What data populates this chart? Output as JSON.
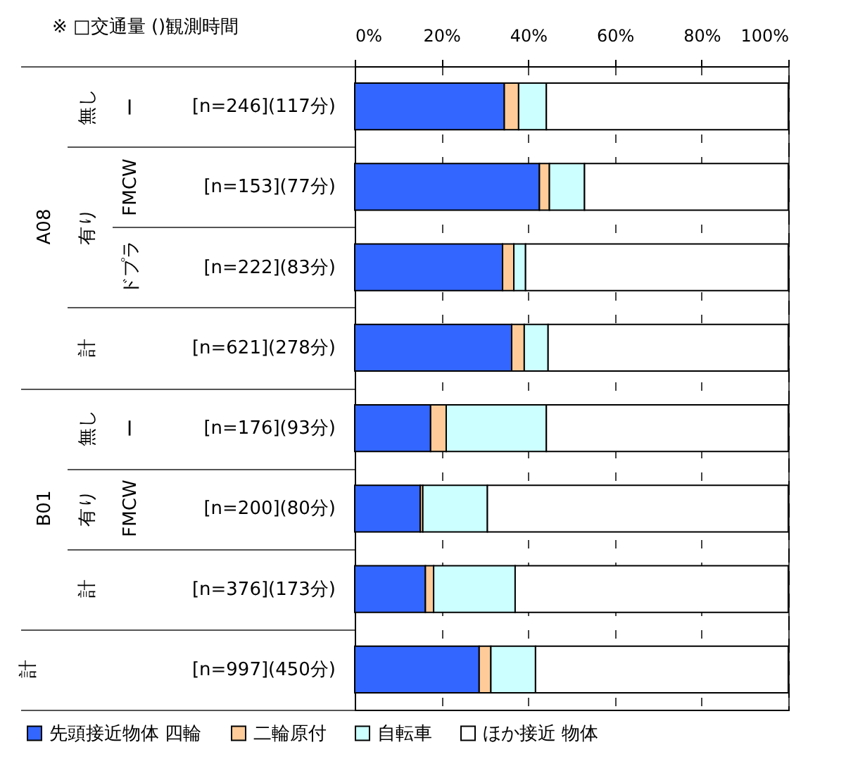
{
  "chart_data": {
    "type": "bar",
    "orientation": "horizontal",
    "stacked": true,
    "title": "※ □交通量 ()観測時間",
    "categories": [
      "[n=246](117分)",
      "[n=153](77分)",
      "[n=222](83分)",
      "[n=621](278分)",
      "[n=176](93分)",
      "[n=200](80分)",
      "[n=376](173分)",
      "[n=997](450分)"
    ],
    "series": [
      {
        "name": "先頭接近物体 四輪",
        "color": "#3366ff",
        "values": [
          34.5,
          42.6,
          34.1,
          36.2,
          17.5,
          15.1,
          16.3,
          28.7
        ]
      },
      {
        "name": "二輪原付",
        "color": "#ffcc99",
        "values": [
          3.3,
          2.3,
          2.6,
          2.9,
          3.6,
          0.6,
          1.9,
          2.7
        ]
      },
      {
        "name": "自転車",
        "color": "#ccffff",
        "values": [
          6.4,
          8.1,
          2.7,
          5.5,
          23.1,
          14.9,
          18.8,
          10.3
        ]
      },
      {
        "name": "ほか接近 物体",
        "color": "#ffffff",
        "values": [
          55.8,
          47.0,
          60.6,
          55.4,
          55.8,
          69.4,
          63.0,
          58.3
        ]
      }
    ],
    "xlim": [
      0,
      100
    ],
    "xticks": [
      {
        "value": 0,
        "label": "0%"
      },
      {
        "value": 20,
        "label": "20%"
      },
      {
        "value": 40,
        "label": "40%"
      },
      {
        "value": 60,
        "label": "60%"
      },
      {
        "value": 80,
        "label": "80%"
      },
      {
        "value": 100,
        "label": "100%"
      }
    ],
    "grid": "x",
    "legend": "bottom",
    "annotations": [
      "A08",
      "B01",
      "計",
      "無し",
      "有り",
      "計",
      "無し",
      "有り",
      "計",
      "ー",
      "FMCW",
      "ドプラ",
      "ー",
      "FMCW"
    ]
  }
}
